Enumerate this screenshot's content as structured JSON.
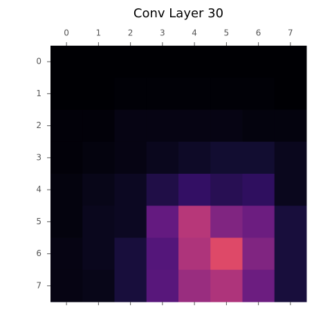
{
  "chart_data": {
    "type": "heatmap",
    "title": "Conv Layer 30",
    "colormap": "magma",
    "clim": [
      0,
      1
    ],
    "xticks": [
      0,
      1,
      2,
      3,
      4,
      5,
      6,
      7
    ],
    "yticks": [
      0,
      1,
      2,
      3,
      4,
      5,
      6,
      7
    ],
    "xlim": [
      -0.5,
      7.5
    ],
    "ylim": [
      7.5,
      -0.5
    ],
    "values": [
      [
        0.0,
        0.0,
        0.0,
        0.0,
        0.0,
        0.0,
        0.0,
        0.0
      ],
      [
        0.0,
        0.0,
        0.005,
        0.005,
        0.005,
        0.005,
        0.005,
        0.0
      ],
      [
        0.01,
        0.01,
        0.03,
        0.03,
        0.03,
        0.03,
        0.02,
        0.02
      ],
      [
        0.01,
        0.02,
        0.03,
        0.05,
        0.07,
        0.09,
        0.09,
        0.05
      ],
      [
        0.02,
        0.04,
        0.06,
        0.13,
        0.18,
        0.15,
        0.17,
        0.05
      ],
      [
        0.02,
        0.05,
        0.06,
        0.3,
        0.5,
        0.37,
        0.32,
        0.11
      ],
      [
        0.03,
        0.05,
        0.11,
        0.26,
        0.48,
        0.6,
        0.37,
        0.11
      ],
      [
        0.03,
        0.04,
        0.11,
        0.27,
        0.43,
        0.48,
        0.32,
        0.11
      ]
    ]
  }
}
